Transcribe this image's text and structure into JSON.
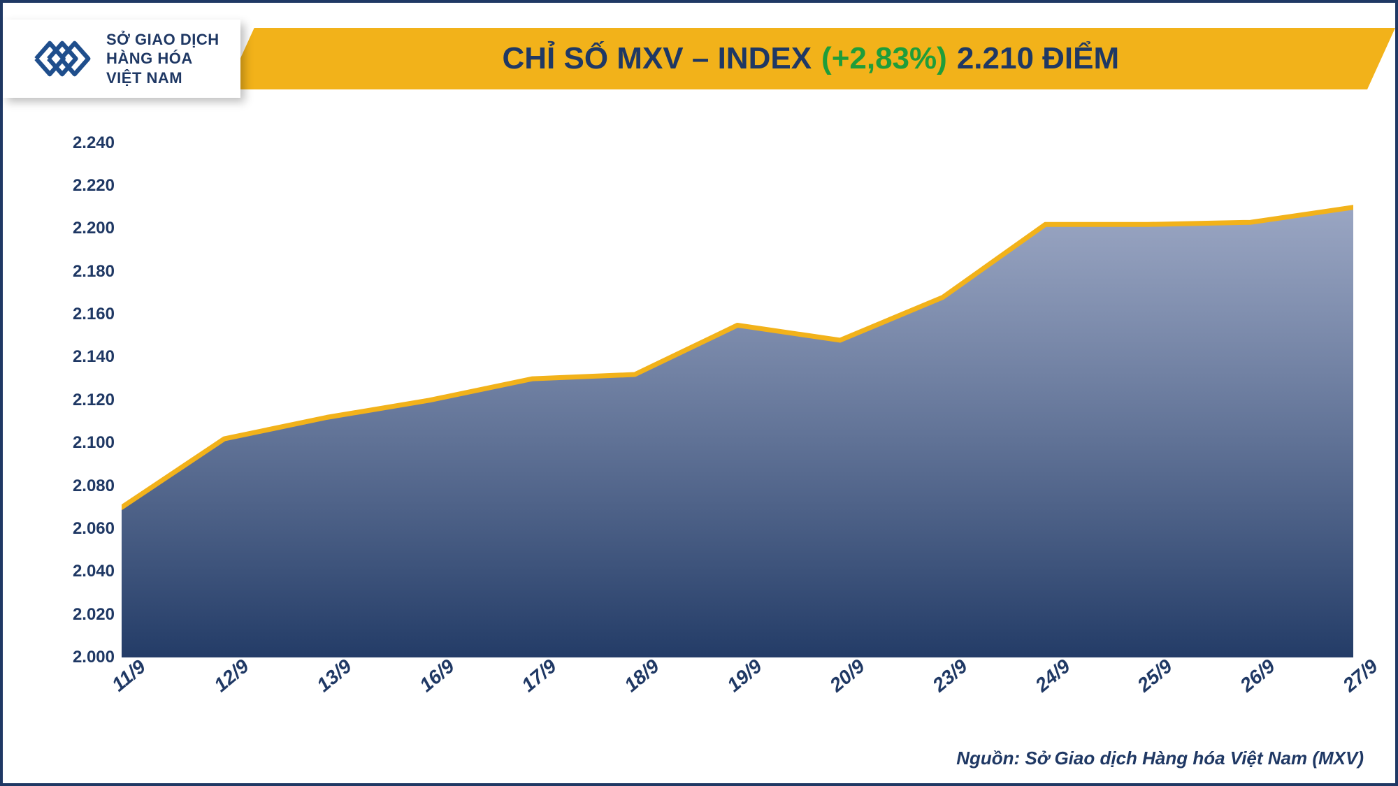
{
  "logo": {
    "line1": "SỞ GIAO DỊCH",
    "line2": "HÀNG HÓA",
    "line3": "VIỆT NAM",
    "mark_color": "#1f4e8c"
  },
  "title": {
    "prefix": "CHỈ SỐ MXV – INDEX",
    "change": "(+2,83%)",
    "value": "2.210 ĐIỂM",
    "banner_color": "#f2b21a",
    "text_color": "#1f3864",
    "change_color": "#1f9d3a",
    "fontsize": 44
  },
  "chart": {
    "type": "area",
    "x_labels": [
      "11/9",
      "12/9",
      "13/9",
      "16/9",
      "17/9",
      "18/9",
      "19/9",
      "20/9",
      "23/9",
      "24/9",
      "25/9",
      "26/9",
      "27/9"
    ],
    "values": [
      2070,
      2102,
      2112,
      2120,
      2130,
      2132,
      2155,
      2148,
      2168,
      2202,
      2202,
      2203,
      2210
    ],
    "ylim": [
      2000,
      2250
    ],
    "ytick_step": 20,
    "ytick_labels": [
      "2.000",
      "2.020",
      "2.040",
      "2.060",
      "2.080",
      "2.100",
      "2.120",
      "2.140",
      "2.160",
      "2.180",
      "2.200",
      "2.220",
      "2.240"
    ],
    "line_color": "#f2b21a",
    "line_width": 7,
    "fill_top_color": "#7d8fb5",
    "fill_bottom_color": "#1f3864",
    "axis_label_color": "#1f3864",
    "axis_fontsize": 24,
    "x_fontsize": 28,
    "grid_color": "#d9dde6",
    "background_color": "#ffffff"
  },
  "source": {
    "label": "Nguồn: Sở Giao dịch Hàng hóa Việt Nam (MXV)",
    "color": "#1f3864",
    "fontsize": 26
  }
}
